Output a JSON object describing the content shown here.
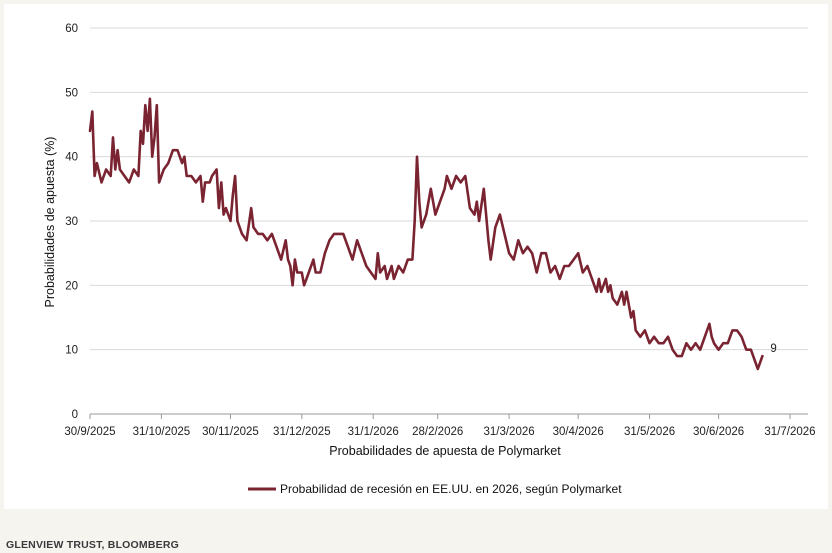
{
  "source": "GLENVIEW TRUST, BLOOMBERG",
  "chart_data": {
    "type": "line",
    "xlabel": "Probabilidades de apuesta de Polymarket",
    "ylabel": "Probabilidades de apuesta (%)",
    "ylim": [
      0,
      60
    ],
    "yticks": [
      0,
      10,
      20,
      30,
      40,
      50,
      60
    ],
    "xticks": [
      "30/9/2025",
      "31/10/2025",
      "30/11/2025",
      "31/12/2025",
      "31/1/2026",
      "28/2/2026",
      "31/3/2026",
      "30/4/2026",
      "31/5/2026",
      "30/6/2026",
      "31/7/2026"
    ],
    "grid": "horizontal",
    "legend_position": "bottom",
    "color": "#7a2432",
    "end_label": "9",
    "series": [
      {
        "name": "Probabilidad de recesión en EE.UU. en 2026, según Polymarket",
        "points": [
          [
            "2025-09-30",
            44
          ],
          [
            "2025-10-01",
            47
          ],
          [
            "2025-10-02",
            37
          ],
          [
            "2025-10-03",
            39
          ],
          [
            "2025-10-05",
            36
          ],
          [
            "2025-10-07",
            38
          ],
          [
            "2025-10-09",
            37
          ],
          [
            "2025-10-10",
            43
          ],
          [
            "2025-10-11",
            38
          ],
          [
            "2025-10-12",
            41
          ],
          [
            "2025-10-13",
            38
          ],
          [
            "2025-10-15",
            37
          ],
          [
            "2025-10-17",
            36
          ],
          [
            "2025-10-19",
            38
          ],
          [
            "2025-10-21",
            37
          ],
          [
            "2025-10-22",
            44
          ],
          [
            "2025-10-23",
            42
          ],
          [
            "2025-10-24",
            48
          ],
          [
            "2025-10-25",
            44
          ],
          [
            "2025-10-26",
            49
          ],
          [
            "2025-10-27",
            40
          ],
          [
            "2025-10-28",
            43
          ],
          [
            "2025-10-29",
            48
          ],
          [
            "2025-10-30",
            36
          ],
          [
            "2025-11-01",
            38
          ],
          [
            "2025-11-03",
            39
          ],
          [
            "2025-11-05",
            41
          ],
          [
            "2025-11-07",
            41
          ],
          [
            "2025-11-09",
            39
          ],
          [
            "2025-11-10",
            40
          ],
          [
            "2025-11-11",
            37
          ],
          [
            "2025-11-13",
            37
          ],
          [
            "2025-11-15",
            36
          ],
          [
            "2025-11-17",
            37
          ],
          [
            "2025-11-18",
            33
          ],
          [
            "2025-11-19",
            36
          ],
          [
            "2025-11-21",
            36
          ],
          [
            "2025-11-22",
            37
          ],
          [
            "2025-11-24",
            38
          ],
          [
            "2025-11-25",
            32
          ],
          [
            "2025-11-26",
            36
          ],
          [
            "2025-11-27",
            31
          ],
          [
            "2025-11-28",
            32
          ],
          [
            "2025-11-30",
            30
          ],
          [
            "2025-12-01",
            34
          ],
          [
            "2025-12-02",
            37
          ],
          [
            "2025-12-03",
            30
          ],
          [
            "2025-12-05",
            28
          ],
          [
            "2025-12-07",
            27
          ],
          [
            "2025-12-09",
            32
          ],
          [
            "2025-12-10",
            29
          ],
          [
            "2025-12-12",
            28
          ],
          [
            "2025-12-14",
            28
          ],
          [
            "2025-12-16",
            27
          ],
          [
            "2025-12-18",
            28
          ],
          [
            "2025-12-20",
            26
          ],
          [
            "2025-12-22",
            24
          ],
          [
            "2025-12-24",
            27
          ],
          [
            "2025-12-25",
            24
          ],
          [
            "2025-12-26",
            23
          ],
          [
            "2025-12-27",
            20
          ],
          [
            "2025-12-28",
            24
          ],
          [
            "2025-12-29",
            22
          ],
          [
            "2025-12-31",
            22
          ],
          [
            "2026-01-01",
            20
          ],
          [
            "2026-01-03",
            22
          ],
          [
            "2026-01-05",
            24
          ],
          [
            "2026-01-06",
            22
          ],
          [
            "2026-01-08",
            22
          ],
          [
            "2026-01-10",
            25
          ],
          [
            "2026-01-12",
            27
          ],
          [
            "2026-01-14",
            28
          ],
          [
            "2026-01-16",
            28
          ],
          [
            "2026-01-18",
            28
          ],
          [
            "2026-01-20",
            26
          ],
          [
            "2026-01-22",
            24
          ],
          [
            "2026-01-24",
            27
          ],
          [
            "2026-01-26",
            25
          ],
          [
            "2026-01-28",
            23
          ],
          [
            "2026-01-30",
            22
          ],
          [
            "2026-02-01",
            21
          ],
          [
            "2026-02-02",
            25
          ],
          [
            "2026-02-03",
            22
          ],
          [
            "2026-02-05",
            23
          ],
          [
            "2026-02-06",
            21
          ],
          [
            "2026-02-08",
            23
          ],
          [
            "2026-02-09",
            21
          ],
          [
            "2026-02-11",
            23
          ],
          [
            "2026-02-13",
            22
          ],
          [
            "2026-02-15",
            24
          ],
          [
            "2026-02-17",
            24
          ],
          [
            "2026-02-18",
            30
          ],
          [
            "2026-02-19",
            40
          ],
          [
            "2026-02-20",
            33
          ],
          [
            "2026-02-21",
            29
          ],
          [
            "2026-02-23",
            31
          ],
          [
            "2026-02-25",
            35
          ],
          [
            "2026-02-27",
            31
          ],
          [
            "2026-03-01",
            33
          ],
          [
            "2026-03-03",
            35
          ],
          [
            "2026-03-04",
            37
          ],
          [
            "2026-03-06",
            35
          ],
          [
            "2026-03-08",
            37
          ],
          [
            "2026-03-10",
            36
          ],
          [
            "2026-03-12",
            37
          ],
          [
            "2026-03-14",
            32
          ],
          [
            "2026-03-16",
            31
          ],
          [
            "2026-03-17",
            33
          ],
          [
            "2026-03-18",
            30
          ],
          [
            "2026-03-20",
            35
          ],
          [
            "2026-03-22",
            27
          ],
          [
            "2026-03-23",
            24
          ],
          [
            "2026-03-25",
            29
          ],
          [
            "2026-03-27",
            31
          ],
          [
            "2026-03-29",
            28
          ],
          [
            "2026-03-31",
            25
          ],
          [
            "2026-04-02",
            24
          ],
          [
            "2026-04-04",
            27
          ],
          [
            "2026-04-06",
            25
          ],
          [
            "2026-04-08",
            26
          ],
          [
            "2026-04-10",
            25
          ],
          [
            "2026-04-12",
            22
          ],
          [
            "2026-04-14",
            25
          ],
          [
            "2026-04-16",
            25
          ],
          [
            "2026-04-18",
            22
          ],
          [
            "2026-04-20",
            23
          ],
          [
            "2026-04-22",
            21
          ],
          [
            "2026-04-24",
            23
          ],
          [
            "2026-04-26",
            23
          ],
          [
            "2026-04-28",
            24
          ],
          [
            "2026-04-30",
            25
          ],
          [
            "2026-05-02",
            22
          ],
          [
            "2026-05-04",
            23
          ],
          [
            "2026-05-06",
            21
          ],
          [
            "2026-05-08",
            19
          ],
          [
            "2026-05-09",
            21
          ],
          [
            "2026-05-10",
            19
          ],
          [
            "2026-05-12",
            21
          ],
          [
            "2026-05-13",
            19
          ],
          [
            "2026-05-14",
            20
          ],
          [
            "2026-05-15",
            18
          ],
          [
            "2026-05-17",
            17
          ],
          [
            "2026-05-19",
            19
          ],
          [
            "2026-05-20",
            17
          ],
          [
            "2026-05-21",
            19
          ],
          [
            "2026-05-23",
            15
          ],
          [
            "2026-05-24",
            16
          ],
          [
            "2026-05-25",
            13
          ],
          [
            "2026-05-27",
            12
          ],
          [
            "2026-05-29",
            13
          ],
          [
            "2026-05-31",
            11
          ],
          [
            "2026-06-02",
            12
          ],
          [
            "2026-06-04",
            11
          ],
          [
            "2026-06-06",
            11
          ],
          [
            "2026-06-08",
            12
          ],
          [
            "2026-06-10",
            10
          ],
          [
            "2026-06-12",
            9
          ],
          [
            "2026-06-14",
            9
          ],
          [
            "2026-06-16",
            11
          ],
          [
            "2026-06-18",
            10
          ],
          [
            "2026-06-20",
            11
          ],
          [
            "2026-06-22",
            10
          ],
          [
            "2026-06-24",
            12
          ],
          [
            "2026-06-26",
            14
          ],
          [
            "2026-06-27",
            12
          ],
          [
            "2026-06-28",
            11
          ],
          [
            "2026-06-30",
            10
          ],
          [
            "2026-07-02",
            11
          ],
          [
            "2026-07-04",
            11
          ],
          [
            "2026-07-06",
            13
          ],
          [
            "2026-07-08",
            13
          ],
          [
            "2026-07-10",
            12
          ],
          [
            "2026-07-11",
            11
          ],
          [
            "2026-07-12",
            10
          ],
          [
            "2026-07-14",
            10
          ],
          [
            "2026-07-15",
            9
          ],
          [
            "2026-07-16",
            8
          ],
          [
            "2026-07-17",
            7
          ],
          [
            "2026-07-19",
            9
          ]
        ]
      }
    ]
  }
}
